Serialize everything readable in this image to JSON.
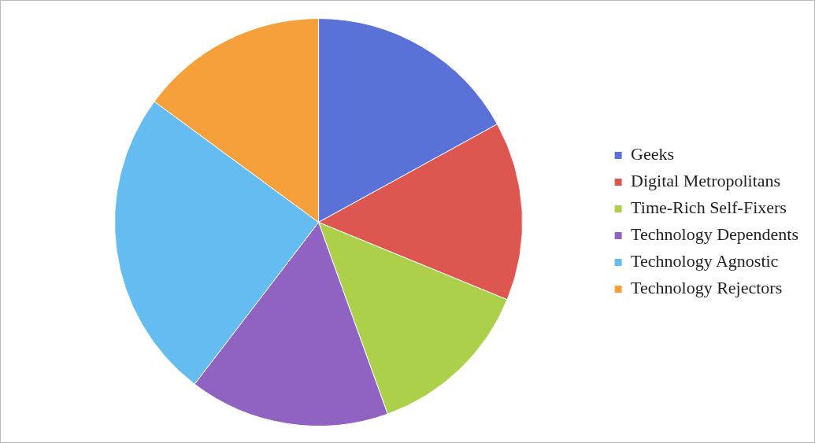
{
  "chart_data": {
    "type": "pie",
    "categories": [
      "Geeks",
      "Digital Metropolitans",
      "Time-Rich Self-Fixers",
      "Technology Dependents",
      "Technology Agnostic",
      "Technology Rejectors"
    ],
    "values": [
      17.0,
      14.2,
      13.3,
      15.9,
      24.7,
      14.9
    ],
    "colors": [
      "#5a72d8",
      "#de5650",
      "#acd04a",
      "#9062c2",
      "#64bcf0",
      "#f6a03c"
    ],
    "legend": "right"
  }
}
